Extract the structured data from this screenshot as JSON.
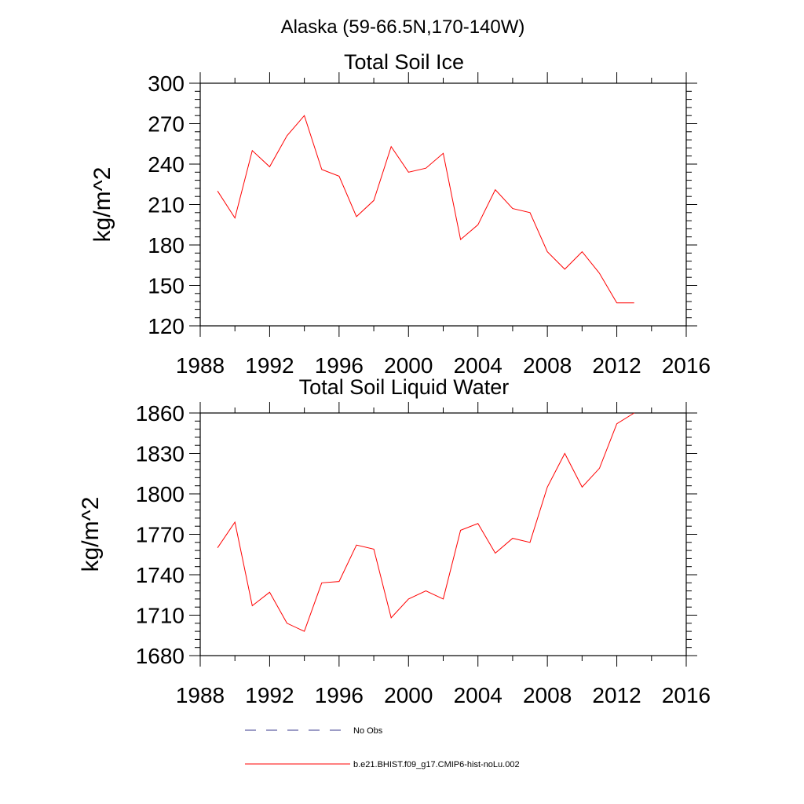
{
  "page_title": "Alaska (59-66.5N,170-140W)",
  "colors": {
    "series": "#ff0000",
    "obs": "#3a3a8c",
    "axis": "#000000"
  },
  "legend": [
    {
      "label": "No Obs",
      "style": "dashed",
      "color": "#3a3a8c"
    },
    {
      "label": "b.e21.BHIST.f09_g17.CMIP6-hist-noLu.002",
      "style": "solid",
      "color": "#ff0000"
    }
  ],
  "chart_data": [
    {
      "type": "line",
      "title": "Total Soil Ice",
      "xlabel": "",
      "ylabel": "kg/m^2",
      "xlim": [
        1988,
        2016
      ],
      "ylim": [
        120,
        300
      ],
      "xticks": [
        1988,
        1992,
        1996,
        2000,
        2004,
        2008,
        2012,
        2016
      ],
      "yticks": [
        120,
        150,
        180,
        210,
        240,
        270,
        300
      ],
      "grid": false,
      "legend_position": "bottom",
      "series": [
        {
          "name": "b.e21.BHIST.f09_g17.CMIP6-hist-noLu.002",
          "x": [
            1989,
            1990,
            1991,
            1992,
            1993,
            1994,
            1995,
            1996,
            1997,
            1998,
            1999,
            2000,
            2001,
            2002,
            2003,
            2004,
            2005,
            2006,
            2007,
            2008,
            2009,
            2010,
            2011,
            2012,
            2013
          ],
          "y": [
            220,
            200,
            250,
            238,
            261,
            276,
            236,
            231,
            201,
            213,
            253,
            234,
            237,
            248,
            184,
            195,
            221,
            207,
            204,
            175,
            162,
            175,
            159,
            137,
            137
          ]
        }
      ]
    },
    {
      "type": "line",
      "title": "Total Soil Liquid Water",
      "xlabel": "",
      "ylabel": "kg/m^2",
      "xlim": [
        1988,
        2016
      ],
      "ylim": [
        1680,
        1860
      ],
      "xticks": [
        1988,
        1992,
        1996,
        2000,
        2004,
        2008,
        2012,
        2016
      ],
      "yticks": [
        1680,
        1710,
        1740,
        1770,
        1800,
        1830,
        1860
      ],
      "grid": false,
      "legend_position": "bottom",
      "series": [
        {
          "name": "b.e21.BHIST.f09_g17.CMIP6-hist-noLu.002",
          "x": [
            1989,
            1990,
            1991,
            1992,
            1993,
            1994,
            1995,
            1996,
            1997,
            1998,
            1999,
            2000,
            2001,
            2002,
            2003,
            2004,
            2005,
            2006,
            2007,
            2008,
            2009,
            2010,
            2011,
            2012,
            2013
          ],
          "y": [
            1760,
            1779,
            1717,
            1727,
            1704,
            1698,
            1734,
            1735,
            1762,
            1759,
            1708,
            1722,
            1728,
            1722,
            1773,
            1778,
            1756,
            1767,
            1764,
            1805,
            1830,
            1805,
            1819,
            1852,
            1860
          ]
        }
      ]
    }
  ]
}
